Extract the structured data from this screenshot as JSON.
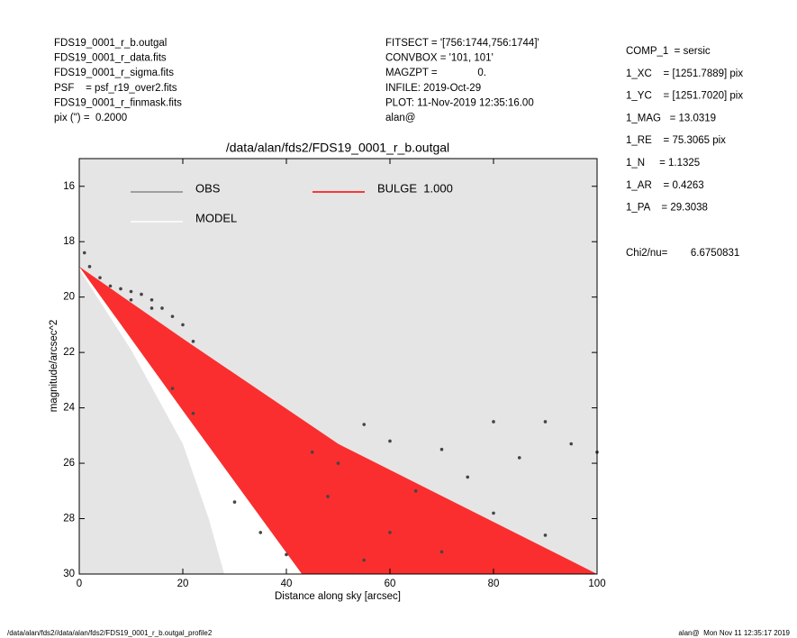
{
  "header": {
    "left": [
      "FDS19_0001_r_b.outgal",
      "FDS19_0001_r_data.fits",
      "FDS19_0001_r_sigma.fits",
      "PSF    = psf_r19_over2.fits",
      "FDS19_0001_r_finmask.fits",
      "pix (\") =  0.2000"
    ],
    "middle": [
      "FITSECT = '[756:1744,756:1744]'",
      "CONVBOX = '101, 101'",
      "MAGZPT =              0.",
      "INFILE: 2019-Oct-29",
      "PLOT: 11-Nov-2019 12:35:16.00",
      "alan@"
    ],
    "right": [
      "COMP_1  = sersic",
      "1_XC    = [1251.7889] pix",
      "1_YC    = [1251.7020] pix",
      "1_MAG   = 13.0319",
      "1_RE    = 75.3065 pix",
      "1_N     = 1.1325",
      "1_AR    = 0.4263",
      "1_PA    = 29.3038"
    ],
    "chi2": "Chi2/nu=        6.6750831"
  },
  "footer": {
    "left": "/data/alan/fds2//data/alan/fds2/FDS19_0001_r_b.outgal_profile2",
    "right": "alan@  Mon Nov 11 12:35:17 2019"
  },
  "chart_data": {
    "type": "scatter",
    "title": "/data/alan/fds2/FDS19_0001_r_b.outgal",
    "xlabel": "Distance along sky [arcsec]",
    "ylabel": "magnitude/arcsec^2",
    "xlim": [
      0,
      100
    ],
    "ylim": [
      30,
      15
    ],
    "xticks": [
      0,
      20,
      40,
      60,
      80,
      100
    ],
    "yticks": [
      16,
      18,
      20,
      22,
      24,
      26,
      28,
      30
    ],
    "background": "#e5e5e5",
    "series": [
      {
        "name": "MODEL",
        "color": "#ffffff",
        "mode": "fill",
        "x": [
          0,
          10,
          20,
          25,
          28,
          43,
          20,
          0
        ],
        "values": [
          19.0,
          21.9,
          25.3,
          28.0,
          30,
          30,
          24.1,
          18.9
        ]
      },
      {
        "name": "BULGE  1.000",
        "color": "#ff0000",
        "mode": "fill",
        "x": [
          0,
          20,
          50,
          100,
          43,
          20,
          0
        ],
        "values": [
          18.9,
          21.5,
          25.3,
          30,
          30,
          24.1,
          18.9
        ]
      },
      {
        "name": "OBS",
        "color": "#444444",
        "legend_color": "#888888",
        "mode": "markers",
        "x": [
          1,
          2,
          4,
          6,
          8,
          10,
          12,
          14,
          16,
          18,
          20,
          10,
          14,
          22,
          18,
          22,
          30,
          35,
          40,
          45,
          50,
          55,
          60,
          65,
          70,
          75,
          80,
          85,
          90,
          95,
          100,
          60,
          70,
          80,
          90,
          55,
          48
        ],
        "values": [
          18.4,
          18.9,
          19.3,
          19.6,
          19.7,
          19.8,
          19.9,
          20.1,
          20.4,
          20.7,
          21.0,
          20.1,
          20.4,
          21.6,
          23.3,
          24.2,
          27.4,
          28.5,
          29.3,
          25.6,
          26.0,
          24.6,
          25.2,
          27.0,
          25.5,
          26.5,
          24.5,
          25.8,
          24.5,
          25.3,
          25.6,
          28.5,
          29.2,
          27.8,
          28.6,
          29.5,
          27.2
        ]
      }
    ]
  }
}
